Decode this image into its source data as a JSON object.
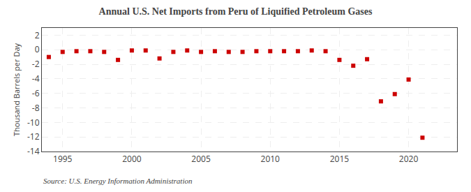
{
  "chart_data": {
    "type": "scatter",
    "title": "Annual U.S. Net Imports from Peru of Liquified Petroleum Gases",
    "y_label": "Thousand Barrels per Day",
    "annotations": [
      "Source: U.S. Energy Information Administration"
    ],
    "x": [
      1994,
      1995,
      1996,
      1997,
      1998,
      1999,
      2000,
      2001,
      2002,
      2003,
      2004,
      2005,
      2006,
      2007,
      2008,
      2009,
      2010,
      2011,
      2012,
      2013,
      2014,
      2015,
      2016,
      2017,
      2018,
      2019,
      2020,
      2021
    ],
    "values": [
      -1.0,
      -0.3,
      -0.2,
      -0.2,
      -0.3,
      -1.4,
      -0.1,
      -0.1,
      -1.2,
      -0.3,
      -0.1,
      -0.3,
      -0.2,
      -0.3,
      -0.3,
      -0.2,
      -0.2,
      -0.2,
      -0.2,
      -0.1,
      -0.2,
      -1.4,
      -2.2,
      -1.3,
      -7.1,
      -6.1,
      -4.1,
      -12.1
    ],
    "color": "#cc0000",
    "marker": "square",
    "xlim": [
      1993.5,
      2023.5
    ],
    "ylim": [
      -14,
      3
    ],
    "xticks": [
      1995,
      2000,
      2005,
      2010,
      2015,
      2020
    ],
    "yticks": [
      2,
      0,
      -2,
      -4,
      -6,
      -8,
      -10,
      -12,
      -14
    ],
    "grid": true
  }
}
